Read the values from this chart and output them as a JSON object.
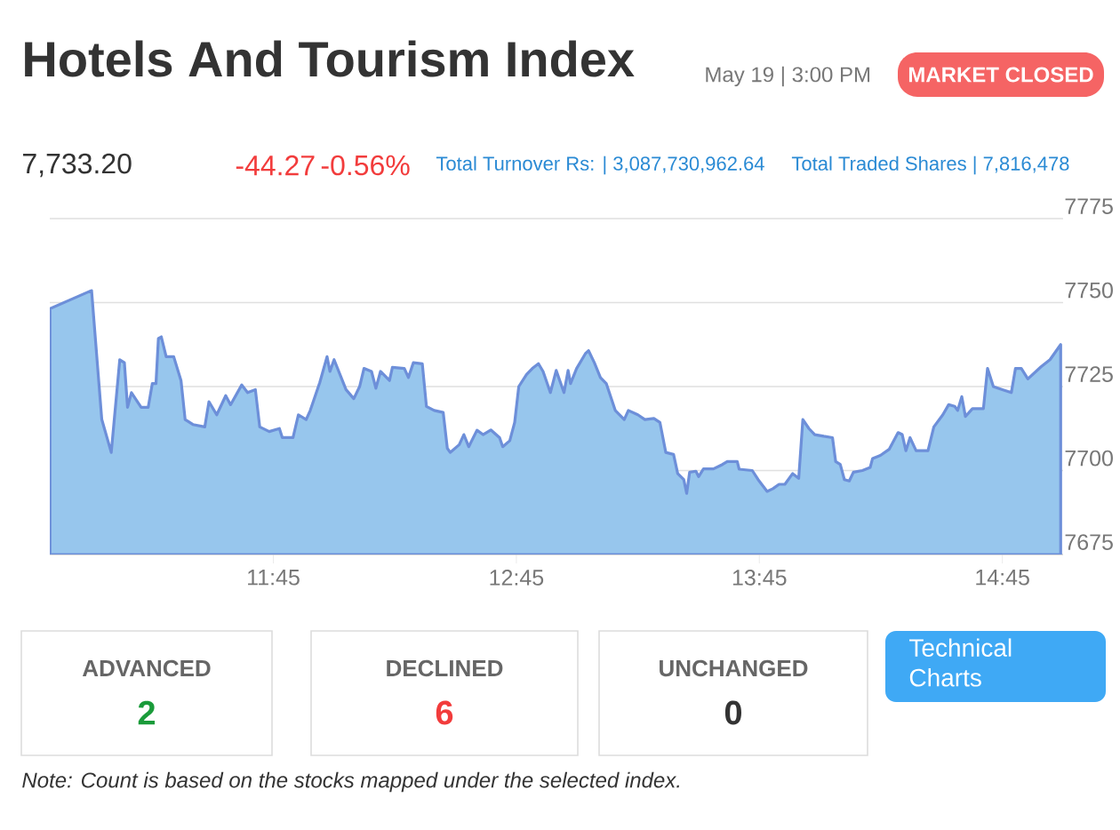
{
  "chart_data": {
    "type": "area",
    "title": "Hotels And Tourism Index",
    "annotations": [
      "May 19 | 3:00 PM",
      "MARKET CLOSED",
      "7,733.20",
      "-44.27",
      "-0.56%",
      "Total Turnover Rs: | 3,087,730,962.64",
      "Total Traded Shares | 7,816,478",
      "ADVANCED",
      "2",
      "DECLINED",
      "6",
      "UNCHANGED",
      "0",
      "Technical Charts",
      "Note: Count is based on the stocks mapped under the selected index."
    ],
    "x": [
      10.831,
      11.002,
      11.044,
      11.083,
      11.118,
      11.137,
      11.15,
      11.166,
      11.206,
      11.235,
      11.252,
      11.267,
      11.277,
      11.289,
      11.309,
      11.34,
      11.37,
      11.387,
      11.419,
      11.468,
      11.485,
      11.517,
      11.554,
      11.574,
      11.62,
      11.644,
      11.676,
      11.694,
      11.733,
      11.775,
      11.787,
      11.831,
      11.853,
      11.885,
      11.902,
      11.941,
      11.971,
      11.983,
      12.0,
      12.049,
      12.081,
      12.105,
      12.123,
      12.154,
      12.172,
      12.191,
      12.228,
      12.24,
      12.289,
      12.306,
      12.326,
      12.363,
      12.38,
      12.412,
      12.449,
      12.466,
      12.478,
      12.515,
      12.534,
      12.554,
      12.588,
      12.613,
      12.645,
      12.681,
      12.694,
      12.723,
      12.743,
      12.76,
      12.792,
      12.816,
      12.841,
      12.86,
      12.89,
      12.914,
      12.946,
      12.963,
      12.973,
      12.998,
      13.034,
      13.047,
      13.071,
      13.096,
      13.12,
      13.157,
      13.194,
      13.211,
      13.25,
      13.279,
      13.316,
      13.341,
      13.365,
      13.397,
      13.414,
      13.439,
      13.451,
      13.463,
      13.489,
      13.5,
      13.52,
      13.561,
      13.598,
      13.618,
      13.659,
      13.667,
      13.721,
      13.745,
      13.782,
      13.806,
      13.831,
      13.855,
      13.887,
      13.912,
      13.929,
      13.954,
      13.978,
      14.015,
      14.051,
      14.064,
      14.083,
      14.1,
      14.12,
      14.137,
      14.174,
      14.206,
      14.216,
      14.248,
      14.284,
      14.321,
      14.338,
      14.353,
      14.37,
      14.395,
      14.444,
      14.468,
      14.505,
      14.529,
      14.554,
      14.566,
      14.583,
      14.598,
      14.627,
      14.672,
      14.689,
      14.713,
      14.75,
      14.787,
      14.804,
      14.828,
      14.855,
      14.909,
      14.946,
      14.99
    ],
    "values": [
      7748.2,
      7753.6,
      7715.2,
      7705.4,
      7733.0,
      7732.1,
      7718.8,
      7723.2,
      7718.8,
      7718.8,
      7725.9,
      7725.9,
      7739.3,
      7739.8,
      7733.9,
      7733.9,
      7726.8,
      7715.2,
      7713.7,
      7713.0,
      7720.5,
      7716.6,
      7722.3,
      7719.6,
      7725.5,
      7723.2,
      7724.1,
      7713.0,
      7711.6,
      7712.5,
      7709.8,
      7709.8,
      7716.6,
      7715.2,
      7717.9,
      7726.2,
      7733.9,
      7729.5,
      7733.0,
      7724.1,
      7721.4,
      7725.0,
      7730.4,
      7729.5,
      7724.5,
      7729.5,
      7726.8,
      7730.7,
      7730.4,
      7727.7,
      7732.1,
      7731.8,
      7719.1,
      7717.9,
      7717.3,
      7706.6,
      7705.4,
      7707.7,
      7710.7,
      7707.1,
      7712.0,
      7710.7,
      7712.1,
      7709.8,
      7707.1,
      7708.9,
      7714.3,
      7725.0,
      7728.6,
      7730.4,
      7731.8,
      7729.5,
      7723.2,
      7729.8,
      7723.2,
      7729.8,
      7725.9,
      7730.4,
      7734.8,
      7735.7,
      7732.1,
      7727.7,
      7725.9,
      7717.9,
      7715.2,
      7717.9,
      7716.6,
      7715.2,
      7715.5,
      7714.3,
      7705.4,
      7704.8,
      7699.1,
      7697.3,
      7693.2,
      7699.5,
      7699.8,
      7698.2,
      7700.5,
      7700.5,
      7701.8,
      7702.7,
      7702.7,
      7700.4,
      7700.0,
      7697.3,
      7693.8,
      7694.6,
      7695.9,
      7695.9,
      7699.1,
      7697.7,
      7715.2,
      7712.5,
      7710.7,
      7710.2,
      7709.8,
      7702.7,
      7701.8,
      7697.3,
      7696.9,
      7699.5,
      7700.0,
      7700.9,
      7703.6,
      7704.5,
      7706.3,
      7711.3,
      7710.7,
      7705.9,
      7709.8,
      7705.9,
      7705.9,
      7713.0,
      7716.6,
      7719.6,
      7719.1,
      7717.9,
      7722.0,
      7716.1,
      7718.4,
      7718.4,
      7730.4,
      7725.0,
      7724.1,
      7723.2,
      7730.4,
      7730.4,
      7727.3,
      7730.9,
      7733.0,
      7737.5
    ],
    "color": "#97c6ed",
    "xlim": [
      10.83,
      15.0
    ],
    "xticks": [
      {
        "value": 11.75,
        "label": "11:45"
      },
      {
        "value": 12.75,
        "label": "12:45"
      },
      {
        "value": 13.75,
        "label": "13:45"
      },
      {
        "value": 14.75,
        "label": "14:45"
      }
    ],
    "ylim": [
      7675,
      7775
    ],
    "yticks": [
      7675,
      7700,
      7725,
      7750,
      7775
    ],
    "grid": "y"
  }
}
